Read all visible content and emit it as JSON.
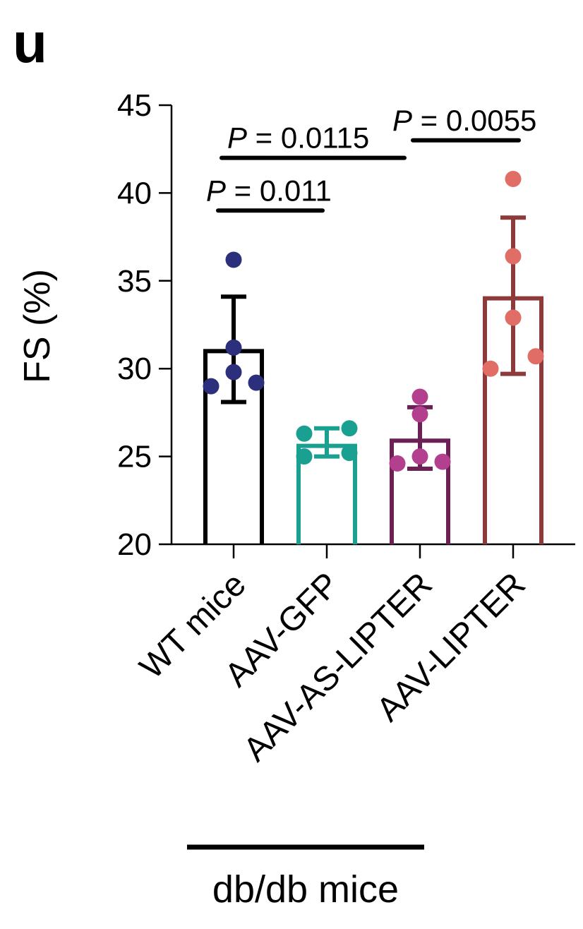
{
  "panel_label": "u",
  "chart_data": {
    "type": "bar",
    "ylabel": "FS (%)",
    "ylim": [
      20,
      45
    ],
    "yticks": [
      "20",
      "25",
      "30",
      "35",
      "40",
      "45"
    ],
    "categories": [
      "WT mice",
      "AAV-GFP",
      "AAV-AS-LIPTER",
      "AAV-LIPTER"
    ],
    "group_label": "db/db mice",
    "bars": [
      {
        "category": "WT mice",
        "mean": 31.0,
        "err_low": 28.1,
        "err_high": 34.1,
        "bar_color": "#000000",
        "point_color": "#2b2f7c",
        "points": [
          36.2,
          31.2,
          29.8,
          29.0,
          29.2
        ]
      },
      {
        "category": "AAV-GFP",
        "mean": 25.6,
        "err_low": 25.0,
        "err_high": 26.6,
        "bar_color": "#1aa090",
        "point_color": "#1aa090",
        "points": [
          26.3,
          26.6,
          25.0,
          25.2
        ]
      },
      {
        "category": "AAV-AS-LIPTER",
        "mean": 25.9,
        "err_low": 24.3,
        "err_high": 27.8,
        "bar_color": "#6b2156",
        "point_color": "#b3408e",
        "points": [
          28.4,
          27.4,
          25.0,
          24.6,
          24.7
        ]
      },
      {
        "category": "AAV-LIPTER",
        "mean": 34.0,
        "err_low": 29.7,
        "err_high": 38.6,
        "bar_color": "#8c3a3a",
        "point_color": "#e06e66",
        "points": [
          40.8,
          36.4,
          32.9,
          30.0,
          30.7
        ]
      }
    ],
    "annotations": [
      {
        "from": 0,
        "to": 1,
        "y": 39.0,
        "p_symbol": "P",
        "text": " = 0.011"
      },
      {
        "from": 0,
        "to": 2,
        "y": 42.0,
        "p_symbol": "P",
        "text": " = 0.0115"
      },
      {
        "from": 2,
        "to": 3,
        "y": 43.0,
        "p_symbol": "P",
        "text": " = 0.0055"
      }
    ]
  }
}
